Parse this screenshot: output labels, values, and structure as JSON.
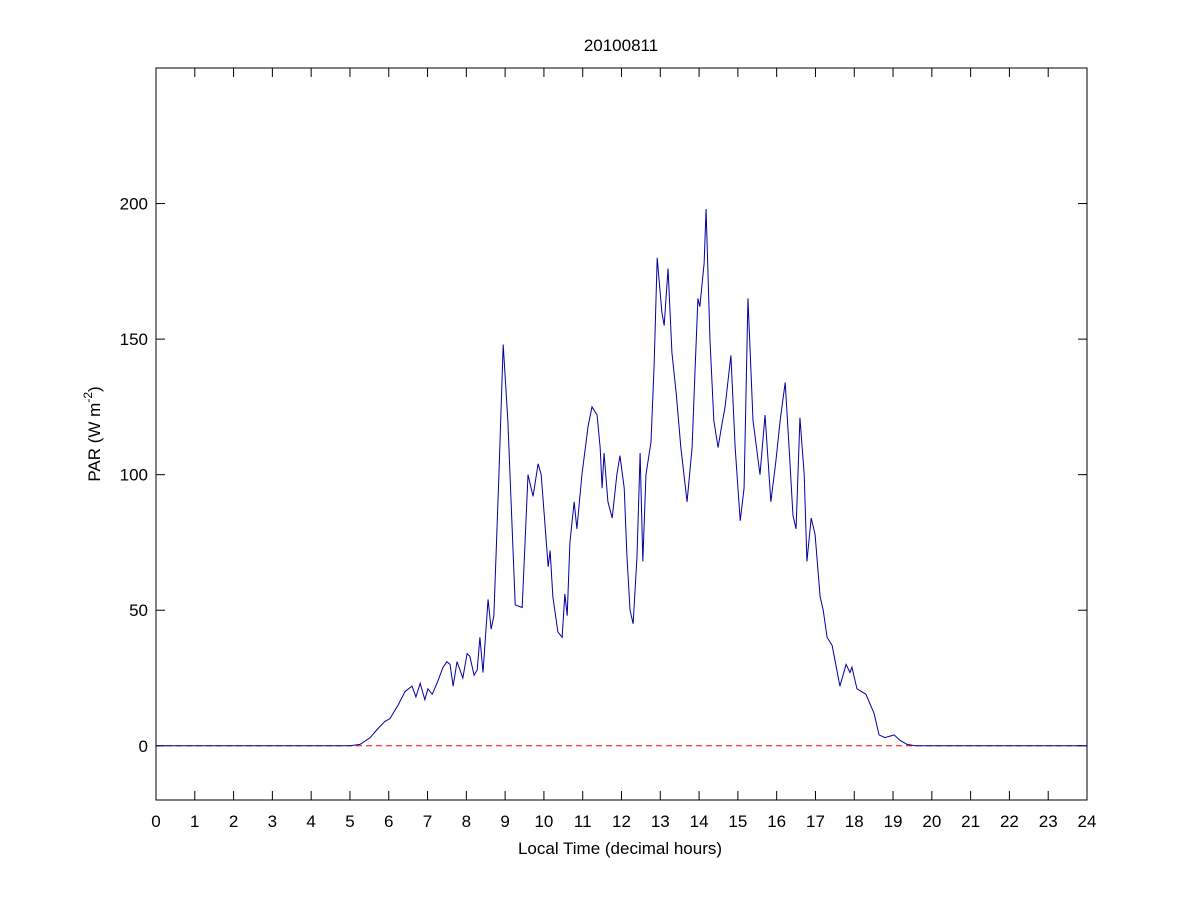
{
  "chart_data": {
    "type": "line",
    "title": "20100811",
    "xlabel": "Local Time (decimal hours)",
    "ylabel_parts": [
      "PAR (W m",
      "-2",
      ")"
    ],
    "xlim": [
      0,
      24
    ],
    "xticks": [
      0,
      1,
      2,
      3,
      4,
      5,
      6,
      7,
      8,
      9,
      10,
      11,
      12,
      13,
      14,
      15,
      16,
      17,
      18,
      19,
      20,
      21,
      22,
      23,
      24
    ],
    "ylim": [
      -20,
      250
    ],
    "yticks": [
      0,
      50,
      100,
      150,
      200
    ],
    "reference_line": {
      "y": 0,
      "color": "#ff0000"
    },
    "series": [
      {
        "color": "#0000a0",
        "x": [
          0,
          5.0,
          5.26,
          5.52,
          5.7,
          5.9,
          6.03,
          6.24,
          6.42,
          6.6,
          6.7,
          6.81,
          6.93,
          7.01,
          7.12,
          7.27,
          7.4,
          7.5,
          7.58,
          7.66,
          7.76,
          7.91,
          8.02,
          8.09,
          8.2,
          8.28,
          8.35,
          8.43,
          8.56,
          8.64,
          8.71,
          8.84,
          8.95,
          9.07,
          9.26,
          9.44,
          9.59,
          9.72,
          9.85,
          9.93,
          10.11,
          10.16,
          10.23,
          10.36,
          10.47,
          10.54,
          10.6,
          10.67,
          10.78,
          10.85,
          10.98,
          11.14,
          11.24,
          11.37,
          11.45,
          11.5,
          11.55,
          11.65,
          11.76,
          11.88,
          11.96,
          12.07,
          12.14,
          12.22,
          12.3,
          12.4,
          12.48,
          12.55,
          12.63,
          12.76,
          12.84,
          12.92,
          13.04,
          13.1,
          13.2,
          13.3,
          13.41,
          13.53,
          13.69,
          13.82,
          13.9,
          13.97,
          14.02,
          14.13,
          14.18,
          14.28,
          14.38,
          14.49,
          14.57,
          14.67,
          14.82,
          14.93,
          15.06,
          15.16,
          15.26,
          15.39,
          15.57,
          15.7,
          15.85,
          15.98,
          16.09,
          16.22,
          16.32,
          16.42,
          16.5,
          16.6,
          16.71,
          16.78,
          16.89,
          16.99,
          17.12,
          17.2,
          17.3,
          17.43,
          17.63,
          17.79,
          17.89,
          17.94,
          18.07,
          18.3,
          18.51,
          18.64,
          18.79,
          19.03,
          19.18,
          19.36,
          19.57,
          24
        ],
        "values": [
          0,
          0,
          0.5,
          3,
          6,
          9,
          10,
          15,
          20,
          22,
          18,
          23,
          17,
          21,
          19,
          24,
          29,
          31,
          30,
          22,
          31,
          25,
          34,
          33,
          26,
          28,
          40,
          27,
          54,
          43,
          48,
          100,
          148,
          120,
          52,
          51,
          100,
          92,
          104,
          100,
          66,
          72,
          55,
          42,
          40,
          56,
          48,
          75,
          90,
          80,
          100,
          118,
          125,
          122,
          110,
          95,
          108,
          90,
          84,
          100,
          107,
          95,
          70,
          50,
          45,
          70,
          108,
          68,
          100,
          112,
          140,
          180,
          160,
          155,
          176,
          145,
          130,
          110,
          90,
          110,
          140,
          165,
          162,
          178,
          198,
          150,
          120,
          110,
          117,
          125,
          144,
          110,
          83,
          95,
          165,
          120,
          100,
          122,
          90,
          105,
          120,
          134,
          110,
          85,
          80,
          121,
          100,
          68,
          84,
          78,
          55,
          50,
          40,
          37,
          22,
          30,
          27,
          29,
          21,
          19,
          12,
          4,
          3,
          4,
          2,
          0.5,
          0,
          0
        ]
      }
    ]
  }
}
